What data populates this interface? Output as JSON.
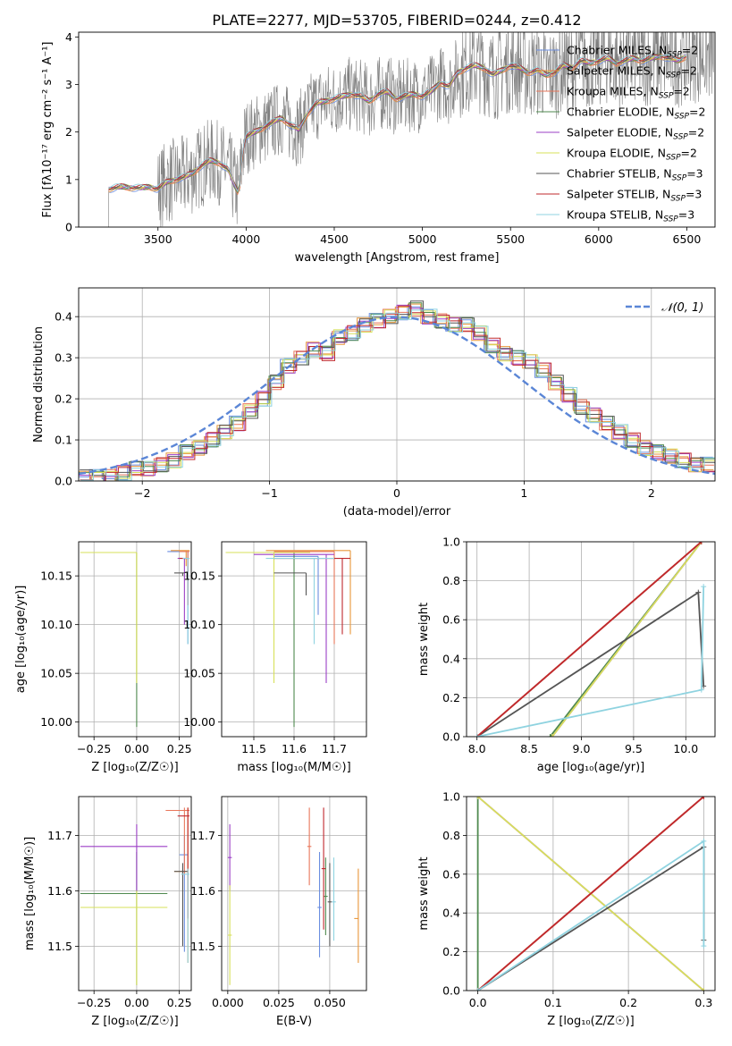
{
  "figure_title": "PLATE=2277, MJD=53705, FIBERID=0244, z=0.412",
  "legend_models": [
    {
      "name": "Chabrier MILES",
      "nssp": "2",
      "color": "#6b8ee0"
    },
    {
      "name": "Salpeter MILES",
      "nssp": "2",
      "color": "#e8963a"
    },
    {
      "name": "Kroupa MILES",
      "nssp": "2",
      "color": "#e8765a"
    },
    {
      "name": "Chabrier ELODIE",
      "nssp": "2",
      "color": "#4f8a4f"
    },
    {
      "name": "Salpeter ELODIE",
      "nssp": "2",
      "color": "#9b3fc6"
    },
    {
      "name": "Kroupa ELODIE",
      "nssp": "2",
      "color": "#d7e05a"
    },
    {
      "name": "Chabrier STELIB",
      "nssp": "3",
      "color": "#555555"
    },
    {
      "name": "Salpeter STELIB",
      "nssp": "3",
      "color": "#c0282d"
    },
    {
      "name": "Kroupa STELIB",
      "nssp": "3",
      "color": "#8fd3e0"
    }
  ],
  "chart_data": [
    {
      "id": "spectrum",
      "type": "line",
      "xlabel": "wavelength [Angstrom, rest frame]",
      "ylabel": "Flux [fλ10⁻¹⁷ erg cm⁻² s⁻¹ A⁻¹]",
      "xlim": [
        3050,
        6660
      ],
      "ylim": [
        0,
        4.1
      ],
      "xticks": [
        3500,
        4000,
        4500,
        5000,
        5500,
        6000,
        6500
      ],
      "yticks": [
        0,
        1,
        2,
        3,
        4
      ],
      "data_start_x": 3220,
      "model_points": {
        "x": [
          3220,
          3250,
          3300,
          3350,
          3400,
          3450,
          3500,
          3550,
          3600,
          3650,
          3700,
          3750,
          3800,
          3850,
          3900,
          3930,
          3960,
          3980,
          4000,
          4050,
          4100,
          4150,
          4200,
          4250,
          4300,
          4350,
          4400,
          4450,
          4500,
          4550,
          4600,
          4650,
          4700,
          4750,
          4800,
          4850,
          4900,
          4950,
          5000,
          5050,
          5100,
          5150,
          5200,
          5250,
          5300,
          5350,
          5400,
          5450,
          5500,
          5550,
          5600,
          5650,
          5700,
          5750,
          5800,
          5850,
          5900,
          5950,
          6000,
          6050,
          6100,
          6150,
          6200,
          6250,
          6300,
          6350,
          6400,
          6450,
          6500
        ],
        "y": [
          0.8,
          0.82,
          0.85,
          0.83,
          0.82,
          0.85,
          0.8,
          0.95,
          1.0,
          1.05,
          1.15,
          1.3,
          1.4,
          1.35,
          1.2,
          0.9,
          0.7,
          1.6,
          1.9,
          2.0,
          2.1,
          2.2,
          2.3,
          2.15,
          2.05,
          2.4,
          2.6,
          2.65,
          2.7,
          2.75,
          2.8,
          2.75,
          2.65,
          2.8,
          2.85,
          2.7,
          2.75,
          2.8,
          2.75,
          2.85,
          3.05,
          2.95,
          3.25,
          3.35,
          3.4,
          3.35,
          3.2,
          3.3,
          3.4,
          3.35,
          3.25,
          3.3,
          3.2,
          3.25,
          3.4,
          3.35,
          3.5,
          3.45,
          3.5,
          3.55,
          3.45,
          3.5,
          3.55,
          3.5,
          3.55,
          3.6,
          3.55,
          3.5,
          3.6
        ]
      },
      "legend_position": "upper right"
    },
    {
      "id": "residuals",
      "type": "step",
      "xlabel": "(data-model)/error",
      "ylabel": "Normed distribution",
      "xlim": [
        -2.5,
        2.5
      ],
      "ylim": [
        0,
        0.47
      ],
      "xticks": [
        -2,
        -1,
        0,
        1,
        2
      ],
      "yticks": [
        0.0,
        0.1,
        0.2,
        0.3,
        0.4
      ],
      "grid": true,
      "reference_label": "𝒩(0, 1)",
      "reference_curve": {
        "name": "N(0,1)",
        "mean": 0,
        "sigma": 1
      },
      "bin_width": 0.1,
      "histogram": {
        "x": [
          -2.5,
          -2.4,
          -2.3,
          -2.2,
          -2.1,
          -2.0,
          -1.9,
          -1.8,
          -1.7,
          -1.6,
          -1.5,
          -1.4,
          -1.3,
          -1.2,
          -1.1,
          -1.0,
          -0.9,
          -0.8,
          -0.7,
          -0.6,
          -0.5,
          -0.4,
          -0.3,
          -0.2,
          -0.1,
          0.0,
          0.1,
          0.2,
          0.3,
          0.4,
          0.5,
          0.6,
          0.7,
          0.8,
          0.9,
          1.0,
          1.1,
          1.2,
          1.3,
          1.4,
          1.5,
          1.6,
          1.7,
          1.8,
          1.9,
          2.0,
          2.1,
          2.2,
          2.3,
          2.4
        ],
        "y": [
          0.01,
          0.01,
          0.01,
          0.02,
          0.03,
          0.03,
          0.04,
          0.05,
          0.07,
          0.08,
          0.1,
          0.12,
          0.14,
          0.17,
          0.2,
          0.24,
          0.28,
          0.3,
          0.32,
          0.31,
          0.35,
          0.36,
          0.38,
          0.39,
          0.4,
          0.41,
          0.42,
          0.4,
          0.39,
          0.38,
          0.38,
          0.36,
          0.33,
          0.31,
          0.3,
          0.29,
          0.27,
          0.24,
          0.21,
          0.18,
          0.16,
          0.14,
          0.12,
          0.1,
          0.08,
          0.07,
          0.06,
          0.05,
          0.04,
          0.04
        ]
      }
    },
    {
      "id": "age-vs-Z",
      "type": "scatter",
      "xlabel": "Z [log₁₀(Z/Z☉)]",
      "ylabel": "age  [log₁₀(age/yr)]",
      "xlim": [
        -0.34,
        0.32
      ],
      "ylim": [
        9.985,
        10.185
      ],
      "xticks": [
        -0.25,
        0.0,
        0.25
      ],
      "yticks": [
        10.0,
        10.05,
        10.1,
        10.15
      ],
      "grid": true
    },
    {
      "id": "age-vs-mass",
      "type": "scatter",
      "xlabel": "mass [log₁₀(M/M☉)]",
      "xlim": [
        11.42,
        11.78
      ],
      "ylim": [
        9.985,
        10.185
      ],
      "xticks": [
        11.5,
        11.6,
        11.7
      ],
      "yticks": [
        10.0,
        10.05,
        10.1,
        10.15
      ],
      "grid": true
    },
    {
      "id": "weight-vs-age",
      "type": "line",
      "xlabel": "age  [log₁₀(age/yr)]",
      "ylabel": "mass weight",
      "xlim": [
        7.9,
        10.28
      ],
      "ylim": [
        0,
        1
      ],
      "xticks": [
        8.0,
        8.5,
        9.0,
        9.5,
        10.0
      ],
      "yticks": [
        0.0,
        0.2,
        0.4,
        0.6,
        0.8,
        1.0
      ],
      "grid": true
    },
    {
      "id": "mass-vs-Z",
      "type": "scatter",
      "xlabel": "Z [log₁₀(Z/Z☉)]",
      "ylabel": "mass [log₁₀(M/M☉)]",
      "xlim": [
        -0.34,
        0.32
      ],
      "ylim": [
        11.42,
        11.77
      ],
      "xticks": [
        -0.25,
        0.0,
        0.25
      ],
      "yticks": [
        11.5,
        11.6,
        11.7
      ],
      "grid": true
    },
    {
      "id": "mass-vs-EBV",
      "type": "scatter",
      "xlabel": "E(B-V)",
      "xlim": [
        -0.003,
        0.068
      ],
      "ylim": [
        11.42,
        11.77
      ],
      "xticks": [
        0.0,
        0.025,
        0.05
      ],
      "yticks": [
        11.5,
        11.6,
        11.7
      ],
      "grid": true
    },
    {
      "id": "weight-vs-Z",
      "type": "line",
      "xlabel": "Z [log₁₀(Z/Z☉)]",
      "ylabel": "mass weight",
      "xlim": [
        -0.015,
        0.315
      ],
      "ylim": [
        0,
        1
      ],
      "xticks": [
        0.0,
        0.1,
        0.2,
        0.3
      ],
      "yticks": [
        0.0,
        0.2,
        0.4,
        0.6,
        0.8,
        1.0
      ],
      "grid": true
    }
  ]
}
